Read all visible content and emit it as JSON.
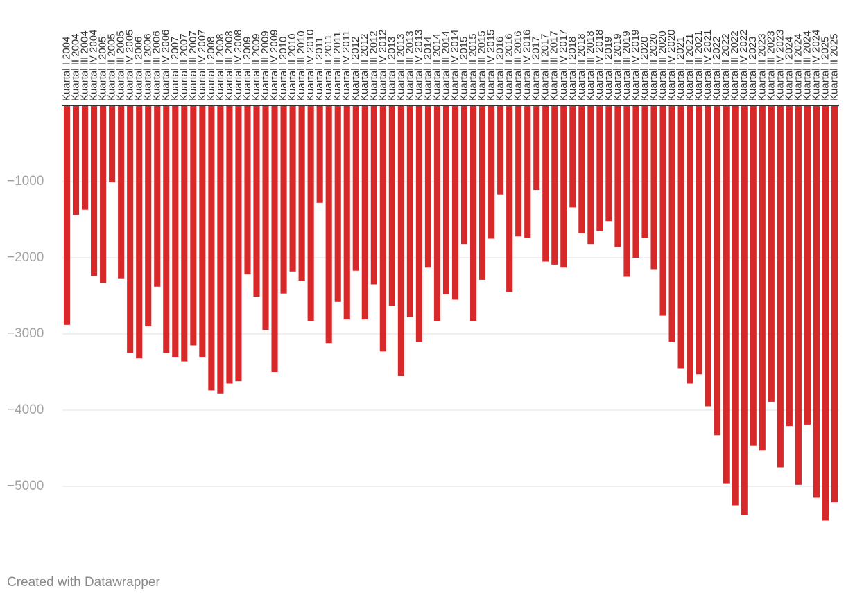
{
  "chart_data": {
    "type": "bar",
    "categories": [
      "Kuartal I 2004",
      "Kuartal II 2004",
      "Kuartal III 2004",
      "Kuartal IV 2004",
      "Kuartal I 2005",
      "Kuartal II 2005",
      "Kuartal III 2005",
      "Kuartal IV 2005",
      "Kuartal I 2006",
      "Kuartal II 2006",
      "Kuartal III 2006",
      "Kuartal IV 2006",
      "Kuartal I 2007",
      "Kuartal II 2007",
      "Kuartal III 2007",
      "Kuartal IV 2007",
      "Kuartal I 2008",
      "Kuartal II 2008",
      "Kuartal III 2008",
      "Kuartal IV 2008",
      "Kuartal I 2009",
      "Kuartal II 2009",
      "Kuartal III 2009",
      "Kuartal IV 2009",
      "Kuartal I 2010",
      "Kuartal II 2010",
      "Kuartal III 2010",
      "Kuartal IV 2010",
      "Kuartal I 2011",
      "Kuartal II 2011",
      "Kuartal III 2011",
      "Kuartal IV 2011",
      "Kuartal I 2012",
      "Kuartal II 2012",
      "Kuartal III 2012",
      "Kuartal IV 2012",
      "Kuartal I 2013",
      "Kuartal II 2013",
      "Kuartal III 2013",
      "Kuartal IV 2013",
      "Kuartal I 2014",
      "Kuartal II 2014",
      "Kuartal III 2014",
      "Kuartal IV 2014",
      "Kuartal I 2015",
      "Kuartal II 2015",
      "Kuartal III 2015",
      "Kuartal IV 2015",
      "Kuartal I 2016",
      "Kuartal II 2016",
      "Kuartal III 2016",
      "Kuartal IV 2016",
      "Kuartal I 2017",
      "Kuartal II 2017",
      "Kuartal III 2017",
      "Kuartal IV 2017",
      "Kuartal I 2018",
      "Kuartal II 2018",
      "Kuartal III 2018",
      "Kuartal IV 2018",
      "Kuartal I 2019",
      "Kuartal II 2019",
      "Kuartal III 2019",
      "Kuartal IV 2019",
      "Kuartal I 2020",
      "Kuartal II 2020",
      "Kuartal III 2020",
      "Kuartal IV 2020",
      "Kuartal I 2021",
      "Kuartal II 2021",
      "Kuartal III 2021",
      "Kuartal IV 2021",
      "Kuartal I 2022",
      "Kuartal II 2022",
      "Kuartal III 2022",
      "Kuartal IV 2022",
      "Kuartal I 2023",
      "Kuartal II 2023",
      "Kuartal III 2023",
      "Kuartal IV 2023",
      "Kuartal I 2024",
      "Kuartal II 2024",
      "Kuartal III 2024",
      "Kuartal IV 2024",
      "Kuartal I 2025",
      "Kuartal II 2025"
    ],
    "values": [
      -2880,
      -1440,
      -1370,
      -2240,
      -2330,
      -1010,
      -2270,
      -3250,
      -3320,
      -2900,
      -2380,
      -3250,
      -3300,
      -3360,
      -3150,
      -3300,
      -3740,
      -3780,
      -3650,
      -3620,
      -2220,
      -2510,
      -2950,
      -3500,
      -2470,
      -2180,
      -2300,
      -2830,
      -1280,
      -3120,
      -2580,
      -2810,
      -2170,
      -2810,
      -2350,
      -3230,
      -2630,
      -3550,
      -2780,
      -3100,
      -2130,
      -2830,
      -2480,
      -2550,
      -1820,
      -2830,
      -2290,
      -1750,
      -1170,
      -2450,
      -1720,
      -1740,
      -1110,
      -2050,
      -2090,
      -2130,
      -1340,
      -1680,
      -1820,
      -1650,
      -1520,
      -1860,
      -2250,
      -2000,
      -1740,
      -2150,
      -2760,
      -3100,
      -3450,
      -3650,
      -3530,
      -3950,
      -4330,
      -4960,
      -5250,
      -5380,
      -4470,
      -4530,
      -3890,
      -4750,
      -4210,
      -4980,
      -4190,
      -5150,
      -5450,
      -5210
    ],
    "color": "#d7292a",
    "ylim": [
      -5800,
      0
    ],
    "yticks": [
      {
        "value": -1000,
        "label": "−1000"
      },
      {
        "value": -2000,
        "label": "−2000"
      },
      {
        "value": -3000,
        "label": "−3000"
      },
      {
        "value": -4000,
        "label": "−4000"
      },
      {
        "value": -5000,
        "label": "−5000"
      }
    ],
    "grid": true,
    "footer": "Created with Datawrapper"
  }
}
